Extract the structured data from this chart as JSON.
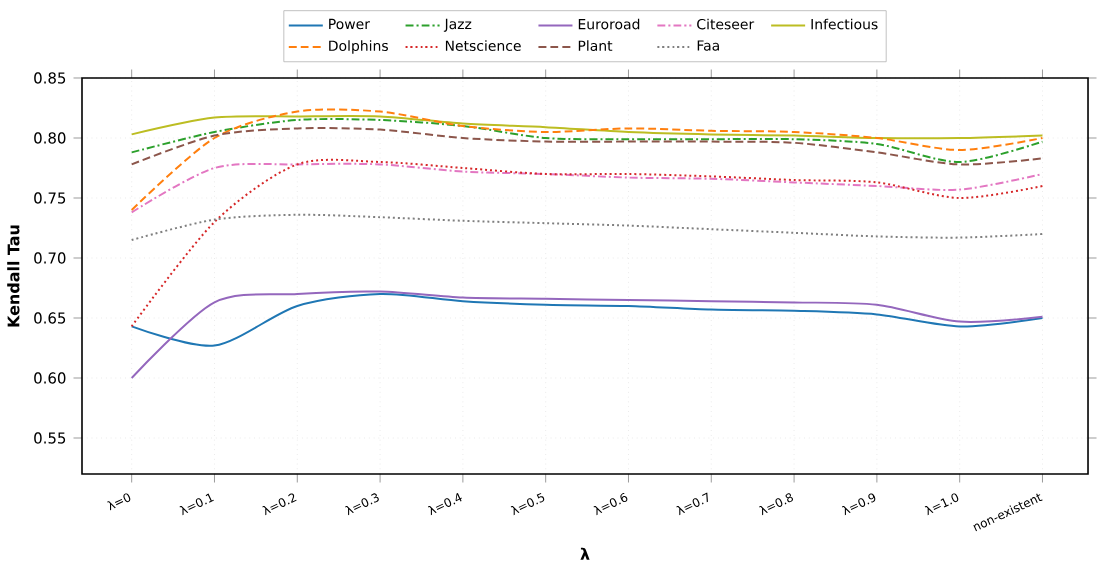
{
  "chart_data": {
    "type": "line",
    "xlabel": "λ",
    "ylabel": "Kendall Tau",
    "categories": [
      "λ=0",
      "λ=0.1",
      "λ=0.2",
      "λ=0.3",
      "λ=0.4",
      "λ=0.5",
      "λ=0.6",
      "λ=0.7",
      "λ=0.8",
      "λ=0.9",
      "λ=1.0",
      "non-existent"
    ],
    "ylim": [
      0.52,
      0.85
    ],
    "yticks": [
      0.55,
      {
        "value": 0.6,
        "label": "0.60"
      },
      0.65,
      {
        "value": 0.7,
        "label": "0.70"
      },
      0.75,
      {
        "value": 0.8,
        "label": "0.80"
      },
      0.85
    ],
    "grid": true,
    "legend": "top",
    "series": [
      {
        "name": "Power",
        "color": "#1f77b4",
        "line_style": "solid",
        "values": [
          0.643,
          0.627,
          0.66,
          0.67,
          0.664,
          0.661,
          0.66,
          0.657,
          0.656,
          0.653,
          0.643,
          0.65
        ]
      },
      {
        "name": "Dolphins",
        "color": "#ff7f0e",
        "line_style": "dashed",
        "values": [
          0.74,
          0.8,
          0.822,
          0.822,
          0.81,
          0.805,
          0.808,
          0.806,
          0.805,
          0.8,
          0.79,
          0.8
        ]
      },
      {
        "name": "Jazz",
        "color": "#2ca02c",
        "line_style": "dashdot",
        "values": [
          0.788,
          0.805,
          0.815,
          0.815,
          0.81,
          0.8,
          0.799,
          0.799,
          0.799,
          0.795,
          0.78,
          0.797
        ]
      },
      {
        "name": "Netscience",
        "color": "#d62728",
        "line_style": "dotted",
        "values": [
          0.643,
          0.73,
          0.778,
          0.78,
          0.775,
          0.77,
          0.77,
          0.768,
          0.765,
          0.763,
          0.75,
          0.76
        ]
      },
      {
        "name": "Euroroad",
        "color": "#9467bd",
        "line_style": "solid",
        "values": [
          0.6,
          0.663,
          0.67,
          0.672,
          0.667,
          0.666,
          0.665,
          0.664,
          0.663,
          0.661,
          0.647,
          0.651
        ]
      },
      {
        "name": "Plant",
        "color": "#8c564b",
        "line_style": "dashed",
        "values": [
          0.778,
          0.802,
          0.808,
          0.807,
          0.8,
          0.797,
          0.797,
          0.797,
          0.796,
          0.788,
          0.778,
          0.783
        ]
      },
      {
        "name": "Citeseer",
        "color": "#e377c2",
        "line_style": "dashdot",
        "values": [
          0.738,
          0.775,
          0.778,
          0.778,
          0.772,
          0.77,
          0.767,
          0.766,
          0.763,
          0.76,
          0.757,
          0.77
        ]
      },
      {
        "name": "Faa",
        "color": "#7f7f7f",
        "line_style": "dotted",
        "values": [
          0.715,
          0.732,
          0.736,
          0.734,
          0.731,
          0.729,
          0.727,
          0.724,
          0.721,
          0.718,
          0.717,
          0.72
        ]
      },
      {
        "name": "Infectious",
        "color": "#bcbd22",
        "line_style": "solid",
        "values": [
          0.803,
          0.817,
          0.818,
          0.818,
          0.812,
          0.809,
          0.805,
          0.803,
          0.802,
          0.8,
          0.8,
          0.802
        ]
      }
    ]
  }
}
